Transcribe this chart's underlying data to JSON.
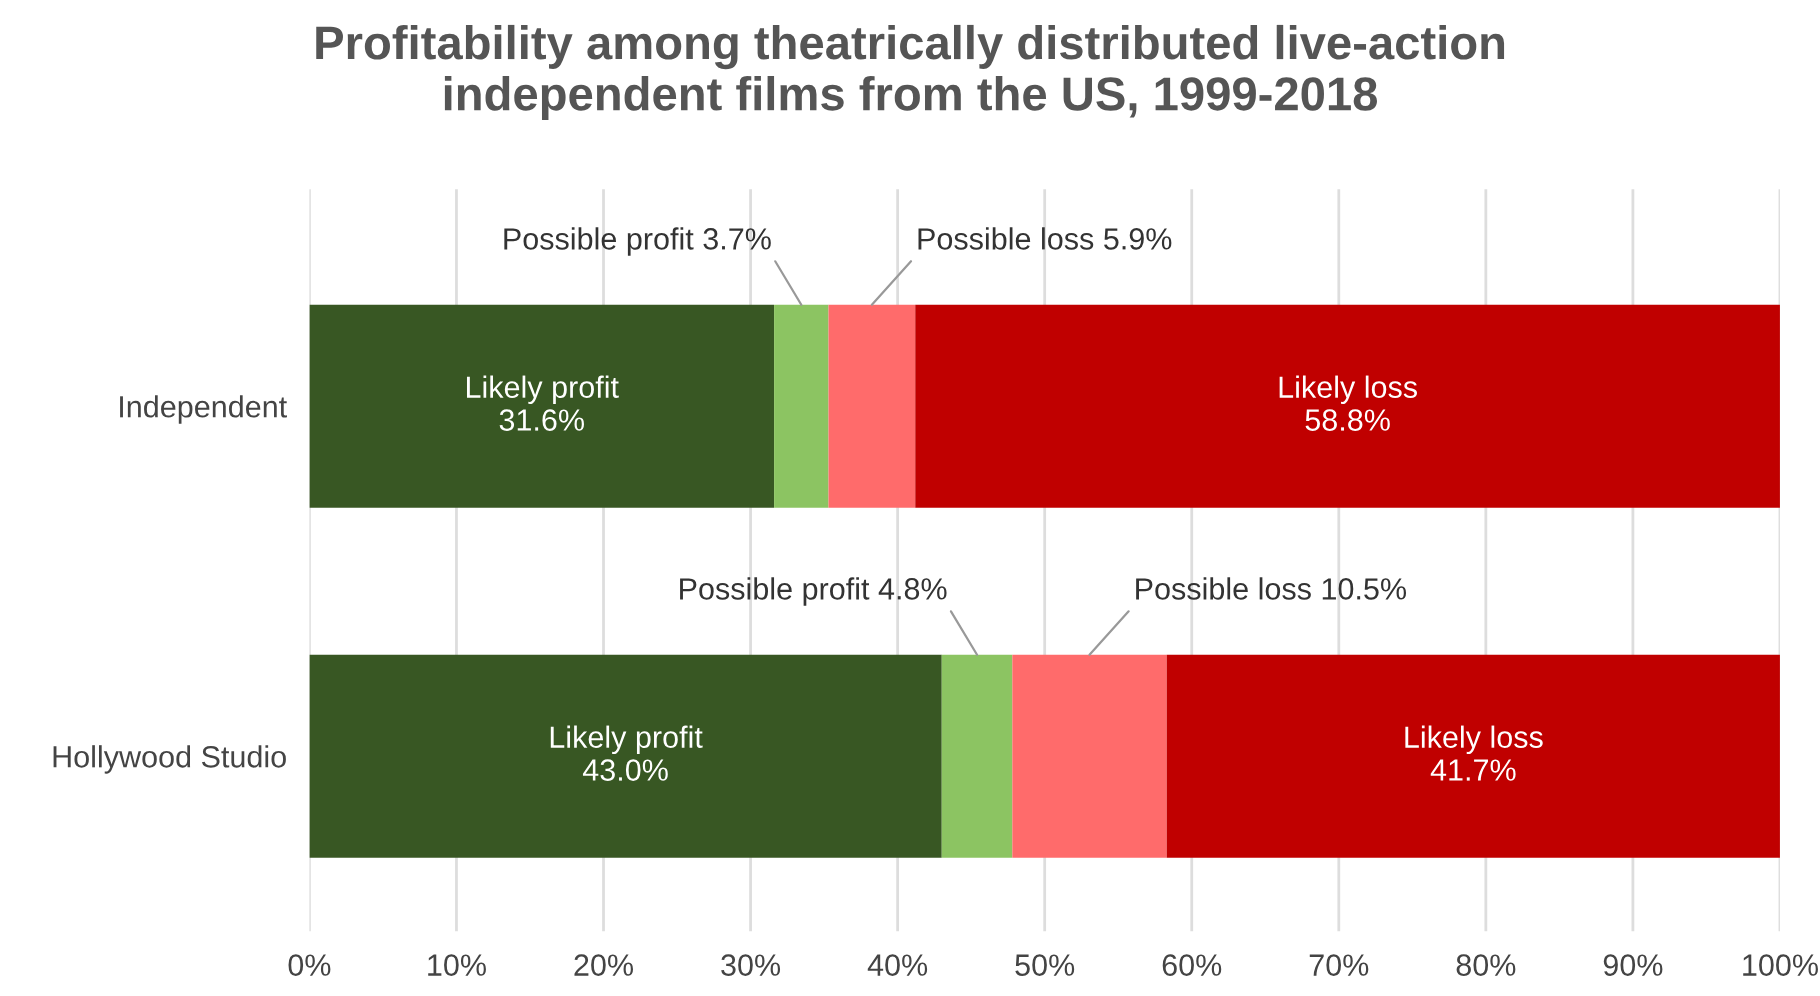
{
  "chart_data": {
    "type": "bar",
    "orientation": "horizontal",
    "stacked": true,
    "title": "Profitability among theatrically distributed live-action\nindependent films from the US, 1999-2018",
    "categories": [
      "Independent",
      "Hollywood Studio"
    ],
    "series": [
      {
        "name": "Likely profit",
        "color": "#385723",
        "values": [
          31.6,
          43.0
        ],
        "value_labels": [
          "31.6%",
          "43.0%"
        ]
      },
      {
        "name": "Possible profit",
        "color": "#8cc462",
        "values": [
          3.7,
          4.8
        ],
        "value_labels": [
          "3.7%",
          "4.8%"
        ]
      },
      {
        "name": "Possible loss",
        "color": "#ff6b6b",
        "values": [
          5.9,
          10.5
        ],
        "value_labels": [
          "5.9%",
          "10.5%"
        ]
      },
      {
        "name": "Likely loss",
        "color": "#c00000",
        "values": [
          58.8,
          41.7
        ],
        "value_labels": [
          "58.8%",
          "41.7%"
        ]
      }
    ],
    "xlim": [
      0,
      100
    ],
    "xticks": [
      {
        "value": 0,
        "label": "0%"
      },
      {
        "value": 10,
        "label": "10%"
      },
      {
        "value": 20,
        "label": "20%"
      },
      {
        "value": 30,
        "label": "30%"
      },
      {
        "value": 40,
        "label": "40%"
      },
      {
        "value": 50,
        "label": "50%"
      },
      {
        "value": 60,
        "label": "60%"
      },
      {
        "value": 70,
        "label": "70%"
      },
      {
        "value": 80,
        "label": "80%"
      },
      {
        "value": 90,
        "label": "90%"
      },
      {
        "value": 100,
        "label": "100%"
      }
    ],
    "grid": "x",
    "legend": false
  }
}
